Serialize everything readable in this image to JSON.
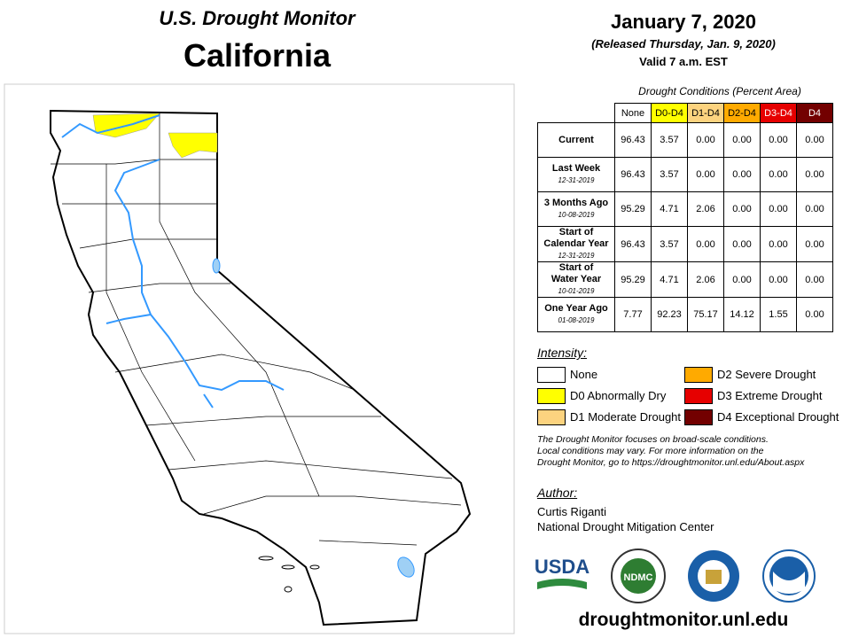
{
  "header": {
    "title": "U.S. Drought Monitor",
    "state": "California"
  },
  "date": {
    "title": "January 7, 2020",
    "released": "(Released Thursday, Jan. 9, 2020)",
    "valid": "Valid 7 a.m. EST"
  },
  "table": {
    "caption": "Drought Conditions (Percent Area)",
    "columns": [
      "None",
      "D0-D4",
      "D1-D4",
      "D2-D4",
      "D3-D4",
      "D4"
    ],
    "column_colors": [
      "#ffffff",
      "#ffff00",
      "#fcd37f",
      "#ffaa00",
      "#e60000",
      "#730000"
    ],
    "rows": [
      {
        "label": [
          "Current"
        ],
        "values": [
          "96.43",
          "3.57",
          "0.00",
          "0.00",
          "0.00",
          "0.00"
        ]
      },
      {
        "label": [
          "Last Week"
        ],
        "date": "12-31-2019",
        "values": [
          "96.43",
          "3.57",
          "0.00",
          "0.00",
          "0.00",
          "0.00"
        ]
      },
      {
        "label": [
          "3 Months Ago"
        ],
        "date": "10-08-2019",
        "values": [
          "95.29",
          "4.71",
          "2.06",
          "0.00",
          "0.00",
          "0.00"
        ]
      },
      {
        "label": [
          "Start of",
          "Calendar Year"
        ],
        "date": "12-31-2019",
        "values": [
          "96.43",
          "3.57",
          "0.00",
          "0.00",
          "0.00",
          "0.00"
        ]
      },
      {
        "label": [
          "Start of",
          "Water Year"
        ],
        "date": "10-01-2019",
        "values": [
          "95.29",
          "4.71",
          "2.06",
          "0.00",
          "0.00",
          "0.00"
        ]
      },
      {
        "label": [
          "One Year Ago"
        ],
        "date": "01-08-2019",
        "values": [
          "7.77",
          "92.23",
          "75.17",
          "14.12",
          "1.55",
          "0.00"
        ]
      }
    ]
  },
  "legend": {
    "title": "Intensity:",
    "items": [
      {
        "label": "None",
        "color": "#ffffff"
      },
      {
        "label": "D0 Abnormally Dry",
        "color": "#ffff00"
      },
      {
        "label": "D1 Moderate Drought",
        "color": "#fcd37f"
      },
      {
        "label": "D2 Severe Drought",
        "color": "#ffaa00"
      },
      {
        "label": "D3 Extreme Drought",
        "color": "#e60000"
      },
      {
        "label": "D4 Exceptional Drought",
        "color": "#730000"
      }
    ]
  },
  "note": [
    "The Drought Monitor focuses on broad-scale conditions.",
    "Local conditions may vary. For more information on the",
    "Drought Monitor, go to https://droughtmonitor.unl.edu/About.aspx"
  ],
  "author": {
    "title": "Author:",
    "name": "Curtis Riganti",
    "org": "National Drought Mitigation Center"
  },
  "logos": [
    "USDA",
    "NDMC"
  ],
  "url": "droughtmonitor.unl.edu"
}
